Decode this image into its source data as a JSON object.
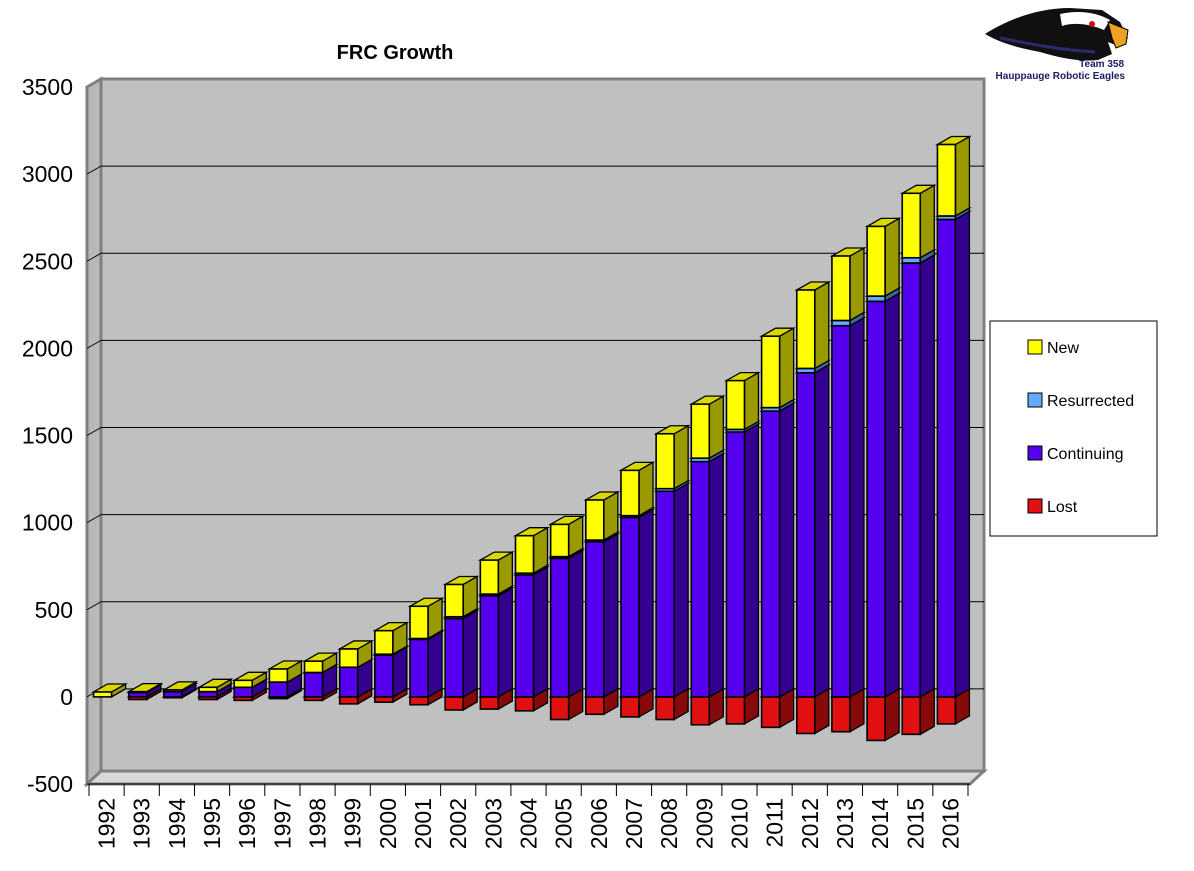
{
  "chart_data": {
    "type": "bar",
    "stacked": true,
    "three_d": true,
    "title": "FRC Growth",
    "xlabel": "",
    "ylabel": "",
    "ylim": [
      -500,
      3500
    ],
    "yticks": [
      -500,
      0,
      500,
      1000,
      1500,
      2000,
      2500,
      3000,
      3500
    ],
    "grid": true,
    "legend_position": "right",
    "categories": [
      "1992",
      "1993",
      "1994",
      "1995",
      "1996",
      "1997",
      "1998",
      "1999",
      "2000",
      "2001",
      "2002",
      "2003",
      "2004",
      "2005",
      "2006",
      "2007",
      "2008",
      "2009",
      "2010",
      "2011",
      "2012",
      "2013",
      "2014",
      "2015",
      "2016"
    ],
    "series": [
      {
        "name": "Lost",
        "color": "#e01010",
        "values": [
          0,
          -15,
          -5,
          -15,
          -20,
          -10,
          -20,
          -40,
          -30,
          -45,
          -75,
          -70,
          -80,
          -130,
          -100,
          -115,
          -130,
          -160,
          -155,
          -175,
          -210,
          -200,
          -250,
          -215,
          -155
        ]
      },
      {
        "name": "Continuing",
        "color": "#5500ee",
        "values": [
          0,
          25,
          30,
          30,
          55,
          85,
          140,
          170,
          240,
          330,
          450,
          580,
          700,
          795,
          890,
          1030,
          1180,
          1350,
          1520,
          1640,
          1860,
          2130,
          2270,
          2490,
          2740
        ]
      },
      {
        "name": "Resurrected",
        "color": "#66aaff",
        "values": [
          0,
          0,
          0,
          0,
          0,
          0,
          0,
          0,
          5,
          5,
          10,
          10,
          10,
          10,
          10,
          10,
          15,
          20,
          15,
          20,
          25,
          30,
          30,
          30,
          20
        ]
      },
      {
        "name": "New",
        "color": "#ffff00",
        "values": [
          28,
          5,
          10,
          25,
          40,
          75,
          65,
          105,
          135,
          185,
          185,
          195,
          215,
          185,
          230,
          260,
          315,
          310,
          280,
          410,
          450,
          370,
          400,
          370,
          410
        ]
      }
    ],
    "legend_order": [
      "New",
      "Resurrected",
      "Continuing",
      "Lost"
    ],
    "plot_bg_color": "#c0c0c0",
    "frame_color": "#808080"
  },
  "logo": {
    "team": "Team 358",
    "name": "Hauppauge Robotic Eagles"
  }
}
